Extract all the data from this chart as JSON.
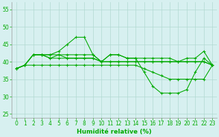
{
  "xlabel": "Humidité relative (%)",
  "background_color": "#d7f0f0",
  "grid_color": "#b0d8d0",
  "line_color": "#00aa00",
  "xlim": [
    -0.5,
    23.5
  ],
  "ylim": [
    24,
    57
  ],
  "yticks": [
    25,
    30,
    35,
    40,
    45,
    50,
    55
  ],
  "xticks": [
    0,
    1,
    2,
    3,
    4,
    5,
    6,
    7,
    8,
    9,
    10,
    11,
    12,
    13,
    14,
    15,
    16,
    17,
    18,
    19,
    20,
    21,
    22,
    23
  ],
  "series": [
    [
      38,
      39,
      42,
      42,
      42,
      43,
      45,
      47,
      47,
      42,
      40,
      42,
      42,
      41,
      41,
      41,
      41,
      41,
      41,
      40,
      41,
      41,
      43,
      39
    ],
    [
      38,
      39,
      42,
      42,
      42,
      42,
      42,
      42,
      42,
      42,
      40,
      42,
      42,
      41,
      41,
      37,
      33,
      31,
      31,
      31,
      32,
      37,
      41,
      39
    ],
    [
      38,
      39,
      42,
      42,
      41,
      42,
      41,
      41,
      41,
      41,
      40,
      40,
      40,
      40,
      40,
      40,
      40,
      40,
      40,
      40,
      40,
      40,
      40,
      39
    ],
    [
      38,
      39,
      42,
      42,
      41,
      41,
      41,
      41,
      41,
      41,
      40,
      40,
      40,
      40,
      40,
      40,
      40,
      40,
      40,
      40,
      40,
      40,
      40,
      39
    ],
    [
      38,
      39,
      39,
      39,
      39,
      39,
      39,
      39,
      39,
      39,
      39,
      39,
      39,
      39,
      39,
      38,
      37,
      36,
      35,
      35,
      35,
      35,
      35,
      39
    ]
  ]
}
